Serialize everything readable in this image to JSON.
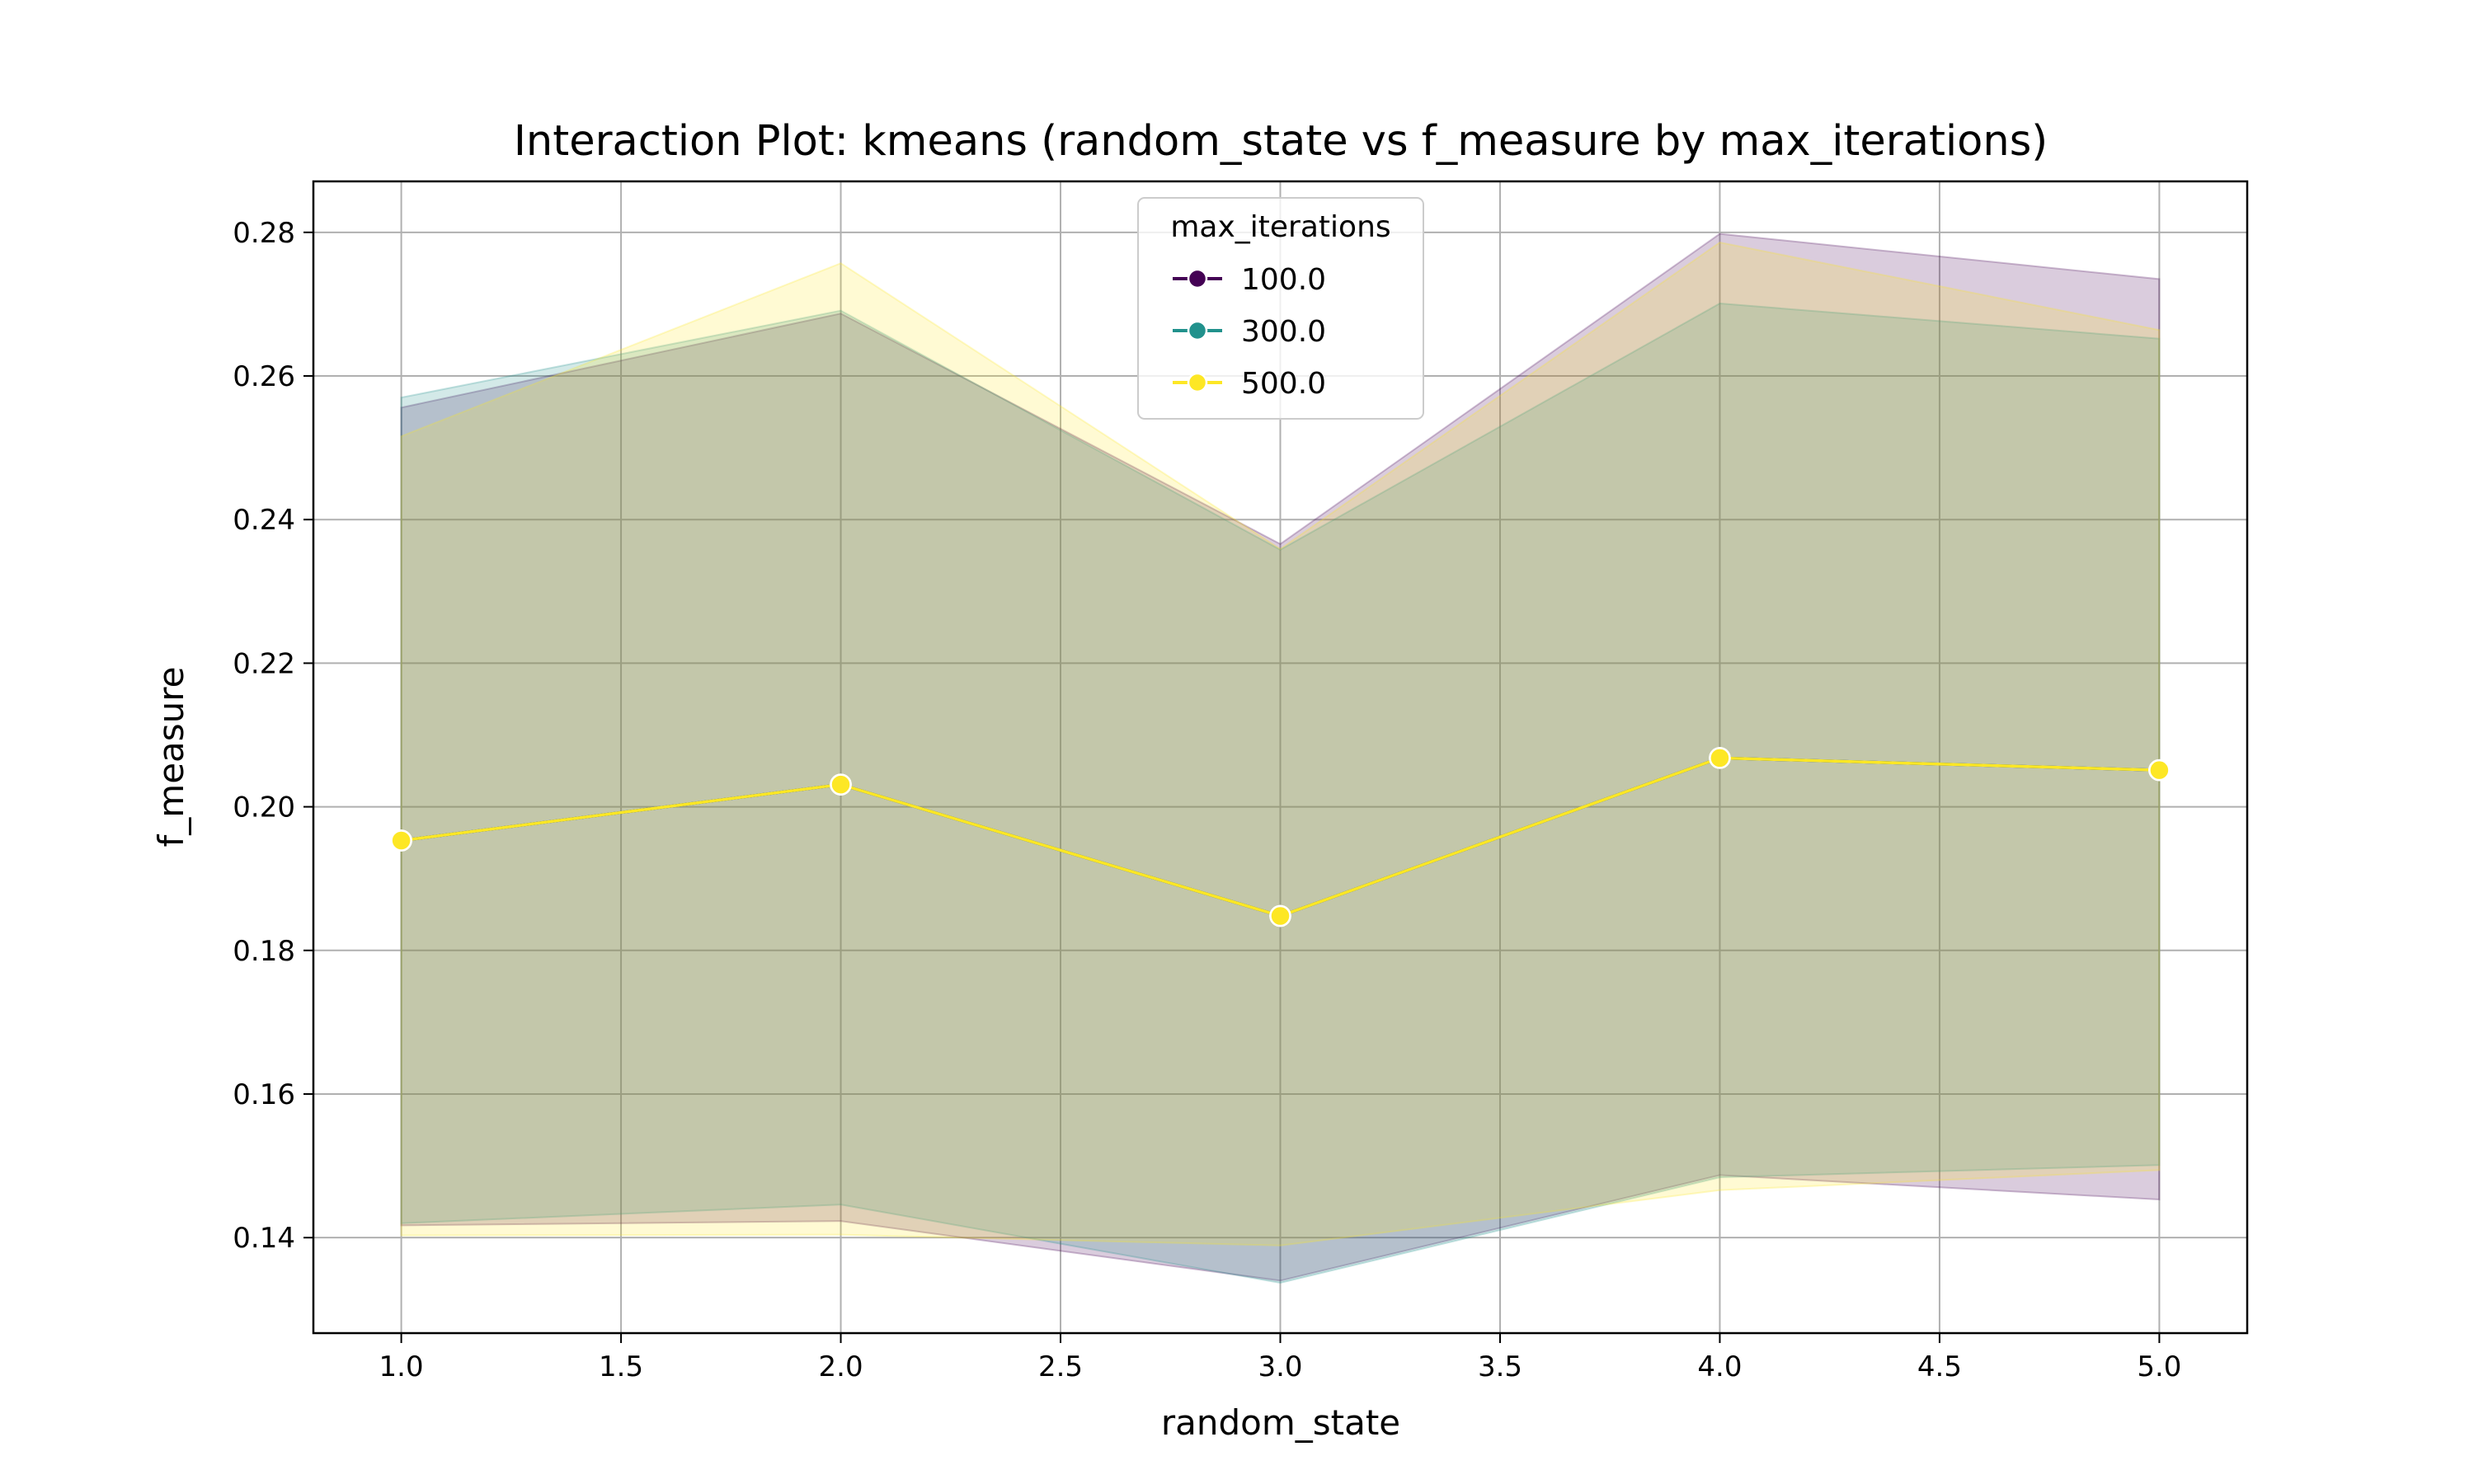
{
  "chart_data": {
    "type": "line",
    "title": "Interaction Plot: kmeans (random_state vs f_measure by max_iterations)",
    "xlabel": "random_state",
    "ylabel": "f_measure",
    "xlim": [
      0.8,
      5.2
    ],
    "ylim": [
      0.1267,
      0.2871
    ],
    "xticks": [
      1.0,
      1.5,
      2.0,
      2.5,
      3.0,
      3.5,
      4.0,
      4.5,
      5.0
    ],
    "xtick_labels": [
      "1.0",
      "1.5",
      "2.0",
      "2.5",
      "3.0",
      "3.5",
      "4.0",
      "4.5",
      "5.0"
    ],
    "yticks": [
      0.14,
      0.16,
      0.18,
      0.2,
      0.22,
      0.24,
      0.26,
      0.28
    ],
    "ytick_labels": [
      "0.14",
      "0.16",
      "0.18",
      "0.20",
      "0.22",
      "0.24",
      "0.26",
      "0.28"
    ],
    "grid": true,
    "legend": {
      "title": "max_iterations",
      "placement": "top-center"
    },
    "x": [
      1.0,
      2.0,
      3.0,
      4.0,
      5.0
    ],
    "series": [
      {
        "name": "100.0",
        "color": "#440154",
        "values": [
          0.1953,
          0.2031,
          0.1848,
          0.2068,
          0.2051
        ],
        "ci_low": [
          0.1417,
          0.1423,
          0.134,
          0.1487,
          0.1453
        ],
        "ci_high": [
          0.2556,
          0.2687,
          0.2366,
          0.2798,
          0.2735
        ]
      },
      {
        "name": "300.0",
        "color": "#21918c",
        "values": [
          0.1953,
          0.2031,
          0.1848,
          0.2068,
          0.2051
        ],
        "ci_low": [
          0.142,
          0.1446,
          0.1337,
          0.1484,
          0.1501
        ],
        "ci_high": [
          0.257,
          0.2691,
          0.2358,
          0.2701,
          0.2652
        ]
      },
      {
        "name": "500.0",
        "color": "#fde725",
        "values": [
          0.1953,
          0.2031,
          0.1848,
          0.2068,
          0.2051
        ],
        "ci_low": [
          0.1403,
          0.1404,
          0.1389,
          0.1466,
          0.1494
        ],
        "ci_high": [
          0.2516,
          0.2757,
          0.2359,
          0.2786,
          0.2664
        ]
      }
    ]
  }
}
